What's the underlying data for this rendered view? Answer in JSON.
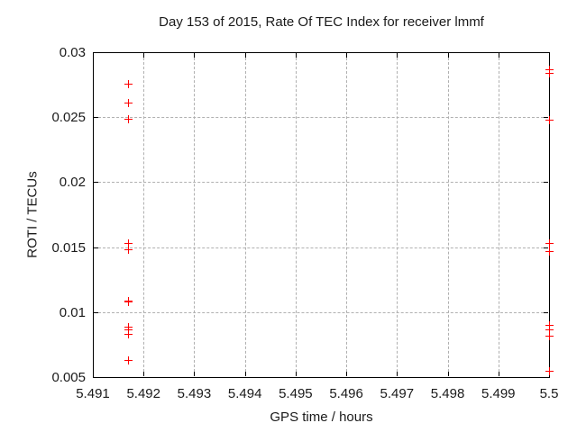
{
  "colors": {
    "point": "#ff0000",
    "grid": "#b0b0b0",
    "axis": "#000000",
    "text": "#1a1a1a",
    "background": "#ffffff"
  },
  "chart_data": {
    "type": "scatter",
    "title": "Day 153 of 2015, Rate Of TEC Index for receiver lmmf",
    "xlabel": "GPS time / hours",
    "ylabel": "ROTI / TECUs",
    "xlim": [
      5.491,
      5.5
    ],
    "ylim": [
      0.005,
      0.03
    ],
    "grid": true,
    "legend": "none",
    "marker": "plus",
    "x_ticks": [
      {
        "v": 5.491,
        "label": "5.491"
      },
      {
        "v": 5.492,
        "label": "5.492"
      },
      {
        "v": 5.493,
        "label": "5.493"
      },
      {
        "v": 5.494,
        "label": "5.494"
      },
      {
        "v": 5.495,
        "label": "5.495"
      },
      {
        "v": 5.496,
        "label": "5.496"
      },
      {
        "v": 5.497,
        "label": "5.497"
      },
      {
        "v": 5.498,
        "label": "5.498"
      },
      {
        "v": 5.499,
        "label": "5.499"
      },
      {
        "v": 5.5,
        "label": "5.5"
      }
    ],
    "y_ticks": [
      {
        "v": 0.005,
        "label": "0.005"
      },
      {
        "v": 0.01,
        "label": "0.01"
      },
      {
        "v": 0.015,
        "label": "0.015"
      },
      {
        "v": 0.02,
        "label": "0.02"
      },
      {
        "v": 0.025,
        "label": "0.025"
      },
      {
        "v": 0.03,
        "label": "0.03"
      }
    ],
    "series": [
      {
        "name": "ROTI",
        "color": "#ff0000",
        "points": [
          [
            5.4917,
            0.0276
          ],
          [
            5.4917,
            0.0261
          ],
          [
            5.4917,
            0.0249
          ],
          [
            5.4917,
            0.0153
          ],
          [
            5.4917,
            0.0148
          ],
          [
            5.4917,
            0.0109
          ],
          [
            5.4917,
            0.0108
          ],
          [
            5.4917,
            0.0089
          ],
          [
            5.4917,
            0.0087
          ],
          [
            5.4917,
            0.0083
          ],
          [
            5.4917,
            0.0063
          ],
          [
            5.5,
            0.0287
          ],
          [
            5.5,
            0.0284
          ],
          [
            5.5,
            0.0248
          ],
          [
            5.5,
            0.0153
          ],
          [
            5.5,
            0.0147
          ],
          [
            5.5,
            0.009
          ],
          [
            5.5,
            0.0087
          ],
          [
            5.5,
            0.0082
          ],
          [
            5.5,
            0.0055
          ]
        ]
      }
    ]
  }
}
